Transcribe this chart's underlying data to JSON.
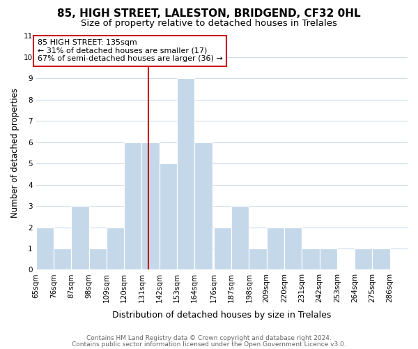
{
  "title": "85, HIGH STREET, LALESTON, BRIDGEND, CF32 0HL",
  "subtitle": "Size of property relative to detached houses in Trelales",
  "xlabel": "Distribution of detached houses by size in Trelales",
  "ylabel": "Number of detached properties",
  "bin_edges": [
    65,
    76,
    87,
    98,
    109,
    120,
    131,
    142,
    153,
    164,
    176,
    187,
    198,
    209,
    220,
    231,
    242,
    253,
    264,
    275,
    286
  ],
  "bar_heights": [
    2,
    1,
    3,
    1,
    2,
    6,
    6,
    5,
    9,
    6,
    2,
    3,
    1,
    2,
    2,
    1,
    1,
    0,
    1,
    1
  ],
  "bar_color": "#c5d8ea",
  "bar_edgecolor": "#ffffff",
  "background_color": "#ffffff",
  "plot_bg_color": "#ffffff",
  "grid_color": "#d0dce8",
  "red_line_x": 135,
  "ylim": [
    0,
    11
  ],
  "yticks": [
    0,
    1,
    2,
    3,
    4,
    5,
    6,
    7,
    8,
    9,
    10,
    11
  ],
  "annotation_title": "85 HIGH STREET: 135sqm",
  "annotation_line1": "← 31% of detached houses are smaller (17)",
  "annotation_line2": "67% of semi-detached houses are larger (36) →",
  "annotation_box_edgecolor": "#cc0000",
  "footer_line1": "Contains HM Land Registry data © Crown copyright and database right 2024.",
  "footer_line2": "Contains public sector information licensed under the Open Government Licence v3.0.",
  "title_fontsize": 11,
  "subtitle_fontsize": 9.5,
  "xlabel_fontsize": 9,
  "ylabel_fontsize": 8.5,
  "tick_fontsize": 7.5,
  "annotation_fontsize": 8,
  "footer_fontsize": 6.5
}
